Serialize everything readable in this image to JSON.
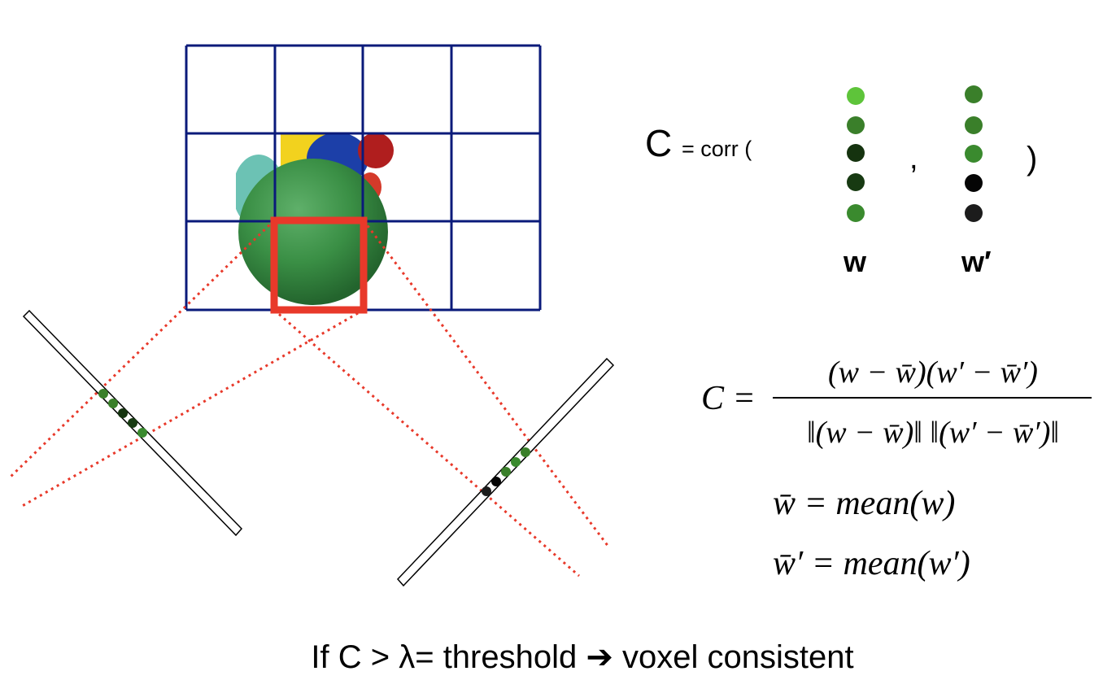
{
  "corr_label": {
    "big_c": "C",
    "prefix": "= corr (",
    "comma": ",",
    "close": ")",
    "w_label": "w",
    "w_prime_label": "w′"
  },
  "formula": {
    "lhs": "C =",
    "numerator": "(w − w̄)(w′ − w̄′)",
    "denominator": "‖(w − w̄)‖ ‖(w′ − w̄′)‖",
    "mean_w": "w̄ = mean(w)",
    "mean_w_prime": "w̄′ = mean(w′)"
  },
  "threshold_text": "If C  > λ= threshold ➔ voxel consistent",
  "colors": {
    "grid": "#0a1a7a",
    "highlight": "#e8392a",
    "ray": "#e8392a",
    "object_green": "#3a8f45",
    "dot_light": "#5ec43a",
    "dot_mid": "#3a7f2a",
    "dot_dark": "#15330f",
    "dot_black": "#0a0a0a"
  },
  "w_vector_colors": [
    "#5ec43a",
    "#3a7f2a",
    "#15330f",
    "#173a12",
    "#3a8a2e"
  ],
  "w_prime_vector_colors": [
    "#3a7f2a",
    "#3a7f2a",
    "#3a8a2e",
    "#050505",
    "#1c1c1c"
  ]
}
